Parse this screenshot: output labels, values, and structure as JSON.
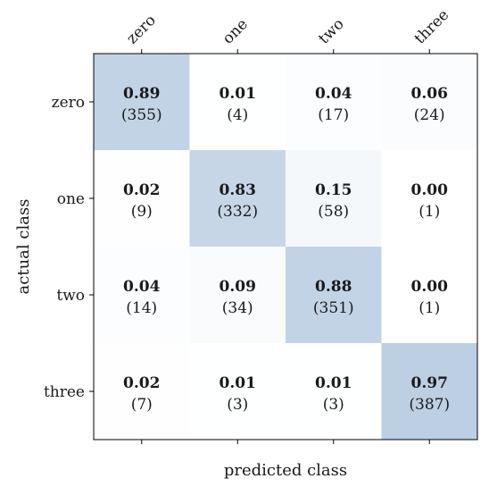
{
  "chart_data": {
    "type": "heatmap",
    "title": "",
    "xlabel": "predicted class",
    "ylabel": "actual class",
    "x_categories": [
      "zero",
      "one",
      "two",
      "three"
    ],
    "y_categories": [
      "zero",
      "one",
      "two",
      "three"
    ],
    "values": [
      [
        0.89,
        0.01,
        0.04,
        0.06
      ],
      [
        0.02,
        0.83,
        0.15,
        0.0
      ],
      [
        0.04,
        0.09,
        0.88,
        0.0
      ],
      [
        0.02,
        0.01,
        0.01,
        0.97
      ]
    ],
    "counts": [
      [
        355,
        4,
        17,
        24
      ],
      [
        9,
        332,
        58,
        1
      ],
      [
        14,
        34,
        351,
        1
      ],
      [
        7,
        3,
        3,
        387
      ]
    ],
    "value_labels": [
      [
        "0.89",
        "0.01",
        "0.04",
        "0.06"
      ],
      [
        "0.02",
        "0.83",
        "0.15",
        "0.00"
      ],
      [
        "0.04",
        "0.09",
        "0.88",
        "0.00"
      ],
      [
        "0.02",
        "0.01",
        "0.01",
        "0.97"
      ]
    ],
    "count_labels": [
      [
        "(355)",
        "(4)",
        "(17)",
        "(24)"
      ],
      [
        "(9)",
        "(332)",
        "(58)",
        "(1)"
      ],
      [
        "(14)",
        "(34)",
        "(351)",
        "(1)"
      ],
      [
        "(7)",
        "(3)",
        "(3)",
        "(387)"
      ]
    ],
    "colormap": {
      "low": "#ffffff",
      "high": "#bccfe3",
      "min_value": 0.0,
      "max_value": 0.97
    },
    "x_tick_position": "top",
    "grid": false
  }
}
